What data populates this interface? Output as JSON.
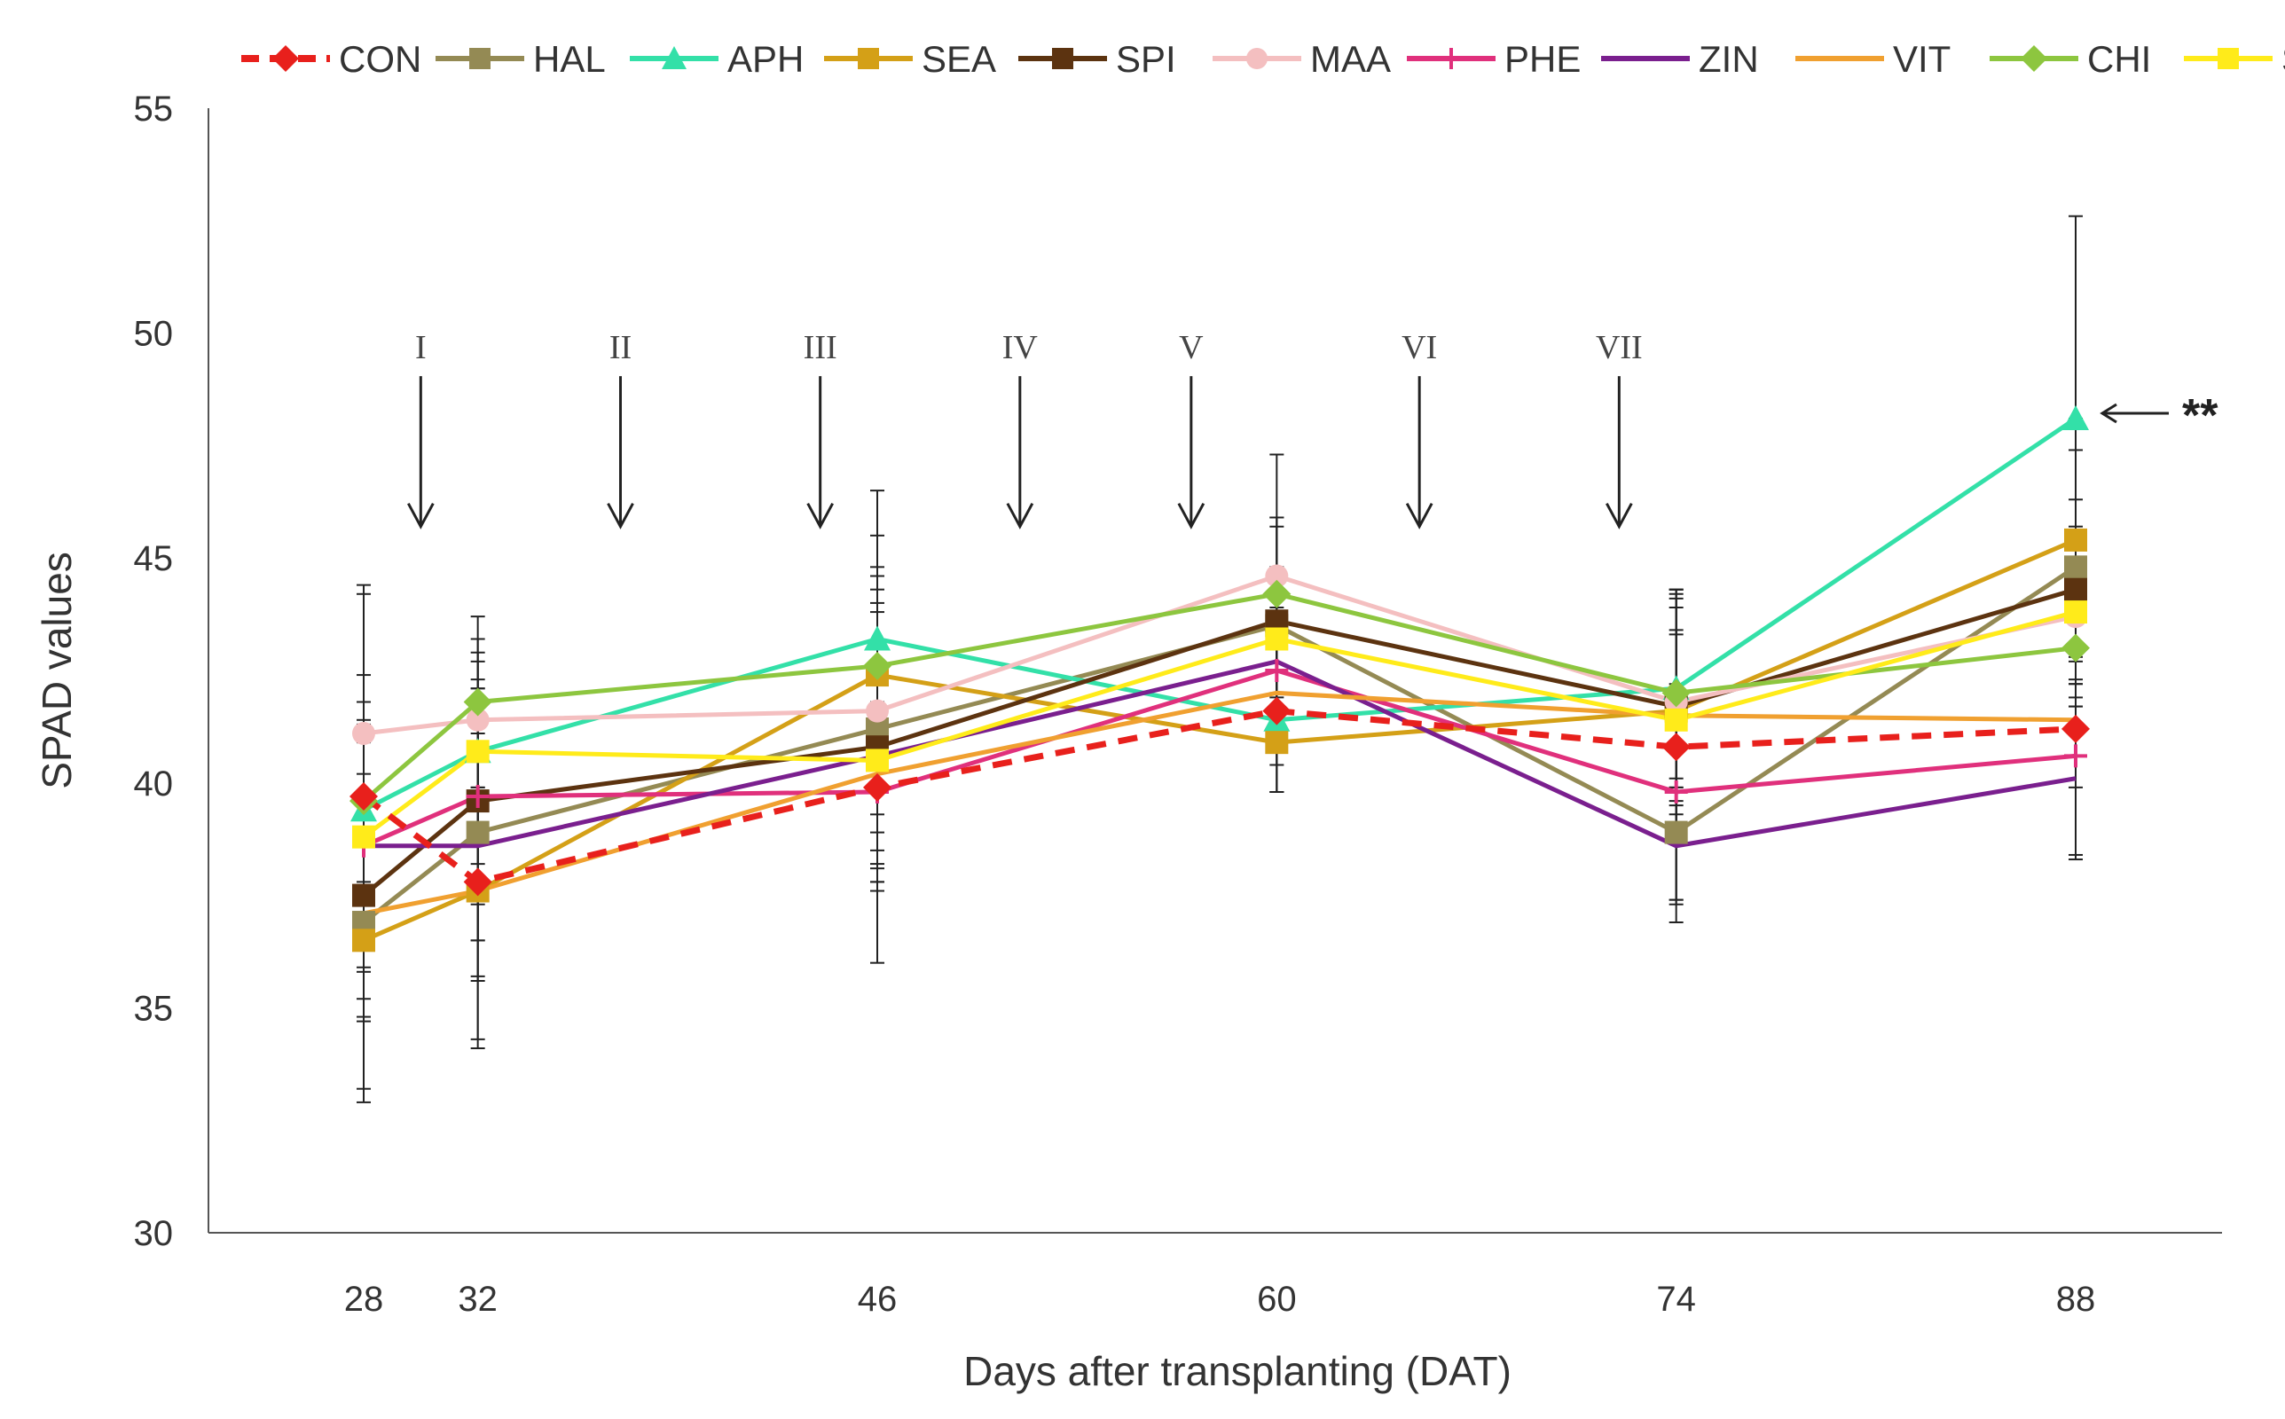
{
  "chart_data": {
    "type": "line",
    "title": "",
    "xlabel": "Days after transplanting (DAT)",
    "ylabel": "SPAD  values",
    "x": [
      28,
      32,
      46,
      60,
      74,
      88
    ],
    "x_tick_labels": [
      "28",
      "32",
      "46",
      "60",
      "74",
      "88"
    ],
    "ylim": [
      30,
      55
    ],
    "y_ticks": [
      30,
      35,
      40,
      45,
      50,
      55
    ],
    "y_tick_labels": [
      "30",
      "35",
      "40",
      "45",
      "50",
      "55"
    ],
    "grid": false,
    "legend_position": "top",
    "series": [
      {
        "name": "CON",
        "color": "#e8201c",
        "marker": "diamond",
        "dashed": true,
        "values": [
          39.7,
          37.8,
          39.9,
          41.6,
          40.8,
          41.2
        ],
        "errors": [
          4.5,
          3.5,
          3.9,
          1.8,
          3.4,
          2.9
        ]
      },
      {
        "name": "HAL",
        "color": "#948a54",
        "marker": "square",
        "dashed": false,
        "values": [
          36.9,
          38.9,
          41.2,
          43.5,
          38.9,
          44.8
        ],
        "errors": [
          4.0,
          3.2,
          3.4,
          2.2,
          2.0,
          2.6
        ]
      },
      {
        "name": "APH",
        "color": "#33e0a8",
        "marker": "triangle",
        "dashed": false,
        "values": [
          39.4,
          40.7,
          43.2,
          41.4,
          42.1,
          48.1
        ],
        "errors": [
          3.0,
          2.5,
          3.3,
          1.6,
          2.2,
          4.5
        ]
      },
      {
        "name": "SEA",
        "color": "#d4a017",
        "marker": "square",
        "dashed": false,
        "values": [
          36.5,
          37.6,
          42.4,
          40.9,
          41.6,
          45.4
        ],
        "errors": [
          3.3,
          3.5,
          3.1,
          1.1,
          2.5,
          2.7
        ]
      },
      {
        "name": "SPI",
        "color": "#5c3310",
        "marker": "square",
        "dashed": false,
        "values": [
          37.5,
          39.6,
          40.8,
          43.6,
          41.7,
          44.3
        ],
        "errors": [
          2.7,
          3.1,
          3.2,
          2.3,
          2.6,
          2.0
        ]
      },
      {
        "name": "MAA",
        "color": "#f4bfc0",
        "marker": "circle",
        "dashed": false,
        "values": [
          41.1,
          41.4,
          41.6,
          44.6,
          41.8,
          43.7
        ],
        "errors": [
          3.3,
          1.5,
          2.7,
          2.7,
          2.5,
          2.0
        ]
      },
      {
        "name": "PHE",
        "color": "#e0307c",
        "marker": "plus",
        "dashed": false,
        "values": [
          38.6,
          39.7,
          39.8,
          42.5,
          39.8,
          40.6
        ],
        "errors": [
          2.8,
          2.4,
          2.0,
          1.4,
          2.4,
          2.2
        ]
      },
      {
        "name": "ZIN",
        "color": "#7a1f8e",
        "marker": "none",
        "dashed": false,
        "values": [
          38.6,
          38.6,
          40.6,
          42.7,
          38.6,
          40.1
        ],
        "errors": [
          2.7,
          2.1,
          2.4,
          1.9,
          1.3,
          1.8
        ]
      },
      {
        "name": "VIT",
        "color": "#f0a030",
        "marker": "none",
        "dashed": false,
        "values": [
          37.1,
          37.6,
          40.2,
          42.0,
          41.5,
          41.4
        ],
        "errors": [
          2.4,
          2.0,
          2.1,
          1.6,
          1.9,
          1.5
        ]
      },
      {
        "name": "CHI",
        "color": "#8dc63f",
        "marker": "diamond",
        "dashed": false,
        "values": [
          39.6,
          41.8,
          42.6,
          44.2,
          42.0,
          43.0
        ],
        "errors": [
          2.2,
          1.9,
          2.2,
          1.7,
          1.9,
          1.3
        ]
      },
      {
        "name": "SIL",
        "color": "#ffeb1a",
        "marker": "square",
        "dashed": false,
        "values": [
          38.8,
          40.7,
          40.5,
          43.2,
          41.4,
          43.8
        ],
        "errors": [
          2.4,
          1.6,
          2.0,
          1.6,
          1.9,
          1.6
        ]
      }
    ],
    "annotations": {
      "application_arrows": [
        {
          "label": "I",
          "x": 30
        },
        {
          "label": "II",
          "x": 37
        },
        {
          "label": "III",
          "x": 44
        },
        {
          "label": "IV",
          "x": 51
        },
        {
          "label": "V",
          "x": 57
        },
        {
          "label": "VI",
          "x": 65
        },
        {
          "label": "VII",
          "x": 72
        }
      ],
      "arrow_tip_y": 45.7,
      "arrow_tail_y": 49.2,
      "significance": {
        "label": "**",
        "series": "APH",
        "x": 88,
        "y": 48.1
      }
    }
  }
}
